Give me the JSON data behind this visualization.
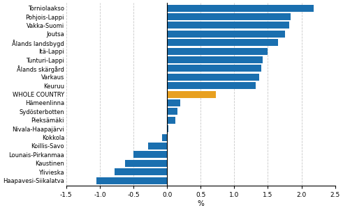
{
  "categories": [
    "Haapavesi-Siikalatva",
    "Ylivieska",
    "Kaustinen",
    "Lounais-Pirkanmaa",
    "Koillis-Savo",
    "Kokkola",
    "Nivala-Haapajärvi",
    "Pieksämäki",
    "Sydösterbotten",
    "Hämeenlinna",
    "WHOLE COUNTRY",
    "Keuruu",
    "Varkaus",
    "Ålands skärgård",
    "Tunturi-Lappi",
    "Itä-Lappi",
    "Ålands landsbygd",
    "Joutsa",
    "Vakka-Suomi",
    "Pohjois-Lappi",
    "Torniolaakso"
  ],
  "values": [
    -1.05,
    -0.78,
    -0.63,
    -0.5,
    -0.28,
    -0.07,
    0.02,
    0.12,
    0.15,
    0.2,
    0.73,
    1.32,
    1.37,
    1.4,
    1.42,
    1.5,
    1.65,
    1.75,
    1.82,
    1.84,
    2.18
  ],
  "bar_colors": [
    "#1a6faf",
    "#1a6faf",
    "#1a6faf",
    "#1a6faf",
    "#1a6faf",
    "#1a6faf",
    "#1a6faf",
    "#1a6faf",
    "#1a6faf",
    "#1a6faf",
    "#e8a020",
    "#1a6faf",
    "#1a6faf",
    "#1a6faf",
    "#1a6faf",
    "#1a6faf",
    "#1a6faf",
    "#1a6faf",
    "#1a6faf",
    "#1a6faf",
    "#1a6faf"
  ],
  "xlabel": "%",
  "xlim": [
    -1.5,
    2.5
  ],
  "xticks": [
    -1.5,
    -1.0,
    -0.5,
    0.0,
    0.5,
    1.0,
    1.5,
    2.0,
    2.5
  ],
  "xtick_labels": [
    "-1.5",
    "-1.0",
    "-0.5",
    "0.0",
    "0.5",
    "1.0",
    "1.5",
    "2.0",
    "2.5"
  ],
  "background_color": "#ffffff",
  "grid_color": "#c8c8c8",
  "bar_height": 0.82,
  "label_fontsize": 6.0,
  "tick_fontsize": 6.5,
  "xlabel_fontsize": 7.5
}
